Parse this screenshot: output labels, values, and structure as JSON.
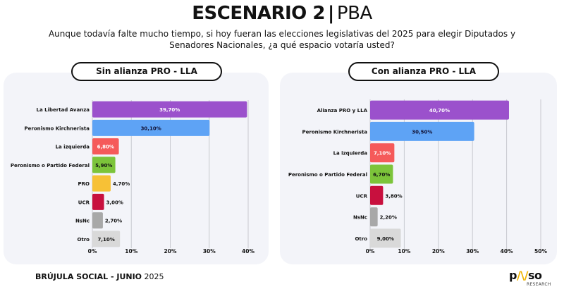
{
  "header": {
    "title_bold": "ESCENARIO 2",
    "separator": "|",
    "title_light": "PBA",
    "subtitle": "Aunque todavía falte mucho tiempo, si hoy fueran las elecciones legislativas del 2025 para elegir Diputados y Senadores Nacionales, ¿a qué espacio votaría usted?"
  },
  "footer": {
    "source_bold": "BRÚJULA SOCIAL - JUNIO",
    "source_year": "2025",
    "logo_text": "pulso",
    "logo_sub": "RESEARCH"
  },
  "chart_data": [
    {
      "type": "bar",
      "orientation": "horizontal",
      "title": "Sin alianza PRO - LLA",
      "categories": [
        "La Libertad Avanza",
        "Peronismo Kirchnerista",
        "La izquierda",
        "Peronismo o Partido Federal",
        "PRO",
        "UCR",
        "NsNc",
        "Otro"
      ],
      "values": [
        39.7,
        30.1,
        6.8,
        5.9,
        4.7,
        3.0,
        2.7,
        7.1
      ],
      "data_labels": [
        "39,70%",
        "30,10%",
        "6,80%",
        "5,90%",
        "4,70%",
        "3,00%",
        "2,70%",
        "7,10%"
      ],
      "colors": [
        "#9b51cc",
        "#5ea3f5",
        "#f55a5a",
        "#7cc43a",
        "#f7c136",
        "#c8103e",
        "#a8a8a8",
        "#d9d9d9"
      ],
      "label_colors": [
        "#ffffff",
        "#111133",
        "#ffffff",
        "#111111",
        "#111111",
        "#111111",
        "#111111",
        "#111111"
      ],
      "xlim": [
        0,
        40
      ],
      "ticks": [
        0,
        10,
        20,
        30,
        40
      ],
      "tick_labels": [
        "0%",
        "10%",
        "20%",
        "30%",
        "40%"
      ],
      "grid": true
    },
    {
      "type": "bar",
      "orientation": "horizontal",
      "title": "Con alianza PRO - LLA",
      "categories": [
        "Alianza PRO y LLA",
        "Peronismo Kirchnerista",
        "La izquierda",
        "Peronismo o Partido Federal",
        "UCR",
        "NsNc",
        "Otro"
      ],
      "values": [
        40.7,
        30.5,
        7.1,
        6.7,
        3.8,
        2.2,
        9.0
      ],
      "data_labels": [
        "40,70%",
        "30,50%",
        "7,10%",
        "6,70%",
        "3,80%",
        "2,20%",
        "9,00%"
      ],
      "colors": [
        "#9b51cc",
        "#5ea3f5",
        "#f55a5a",
        "#7cc43a",
        "#c8103e",
        "#a8a8a8",
        "#d9d9d9"
      ],
      "label_colors": [
        "#ffffff",
        "#111133",
        "#ffffff",
        "#111111",
        "#111111",
        "#111111",
        "#111111"
      ],
      "xlim": [
        0,
        50
      ],
      "ticks": [
        0,
        10,
        20,
        30,
        40,
        50
      ],
      "tick_labels": [
        "0%",
        "10%",
        "20%",
        "30%",
        "40%",
        "50%"
      ],
      "grid": true
    }
  ]
}
